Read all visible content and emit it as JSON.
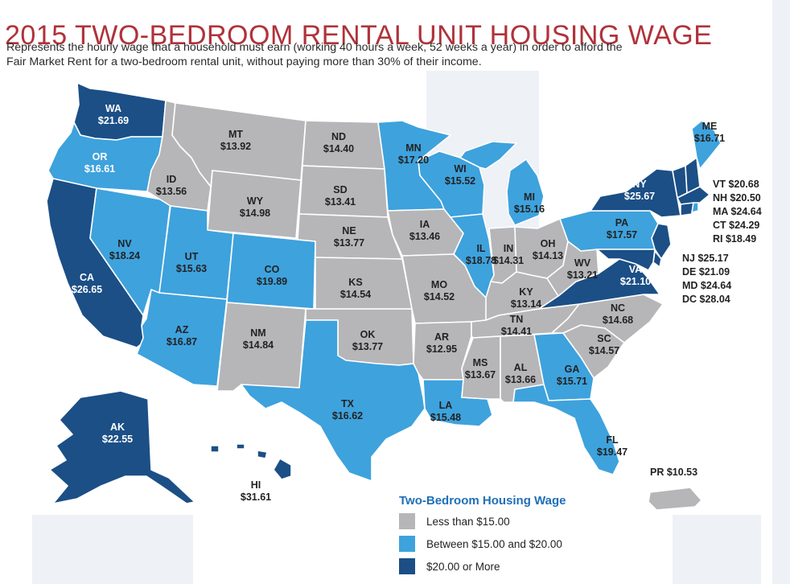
{
  "header": {
    "title": "2015 TWO-BEDROOM RENTAL UNIT HOUSING WAGE",
    "subtitle_line1": "Represents the hourly wage that a household must earn (working 40 hours a week, 52 weeks a year) in order to afford the",
    "subtitle_line2": "Fair Market Rent for a two-bedroom rental unit, without paying more than 30% of their income."
  },
  "colors": {
    "less_than_15": "#b6b6b8",
    "between_15_20": "#3ea2dd",
    "twenty_or_more": "#1b4f86",
    "title_red": "#b0323a",
    "legend_title_blue": "#1e6fb8"
  },
  "states": [
    {
      "code": "WA",
      "value": "$21.69",
      "tier": "high"
    },
    {
      "code": "OR",
      "value": "$16.61",
      "tier": "mid"
    },
    {
      "code": "CA",
      "value": "$26.65",
      "tier": "high"
    },
    {
      "code": "ID",
      "value": "$13.56",
      "tier": "low"
    },
    {
      "code": "NV",
      "value": "$18.24",
      "tier": "mid"
    },
    {
      "code": "MT",
      "value": "$13.92",
      "tier": "low"
    },
    {
      "code": "WY",
      "value": "$14.98",
      "tier": "low"
    },
    {
      "code": "UT",
      "value": "$15.63",
      "tier": "mid"
    },
    {
      "code": "AZ",
      "value": "$16.87",
      "tier": "mid"
    },
    {
      "code": "CO",
      "value": "$19.89",
      "tier": "mid"
    },
    {
      "code": "NM",
      "value": "$14.84",
      "tier": "low"
    },
    {
      "code": "ND",
      "value": "$14.40",
      "tier": "low"
    },
    {
      "code": "SD",
      "value": "$13.41",
      "tier": "low"
    },
    {
      "code": "NE",
      "value": "$13.77",
      "tier": "low"
    },
    {
      "code": "KS",
      "value": "$14.54",
      "tier": "low"
    },
    {
      "code": "OK",
      "value": "$13.77",
      "tier": "low"
    },
    {
      "code": "TX",
      "value": "$16.62",
      "tier": "mid"
    },
    {
      "code": "MN",
      "value": "$17.20",
      "tier": "mid"
    },
    {
      "code": "IA",
      "value": "$13.46",
      "tier": "low"
    },
    {
      "code": "MO",
      "value": "$14.52",
      "tier": "low"
    },
    {
      "code": "AR",
      "value": "$12.95",
      "tier": "low"
    },
    {
      "code": "LA",
      "value": "$15.48",
      "tier": "mid"
    },
    {
      "code": "WI",
      "value": "$15.52",
      "tier": "mid"
    },
    {
      "code": "IL",
      "value": "$18.78",
      "tier": "mid"
    },
    {
      "code": "MI",
      "value": "$15.16",
      "tier": "mid"
    },
    {
      "code": "IN",
      "value": "$14.31",
      "tier": "low"
    },
    {
      "code": "OH",
      "value": "$14.13",
      "tier": "low"
    },
    {
      "code": "KY",
      "value": "$13.14",
      "tier": "low"
    },
    {
      "code": "TN",
      "value": "$14.41",
      "tier": "low"
    },
    {
      "code": "MS",
      "value": "$13.67",
      "tier": "low"
    },
    {
      "code": "AL",
      "value": "$13.66",
      "tier": "low"
    },
    {
      "code": "GA",
      "value": "$15.71",
      "tier": "mid"
    },
    {
      "code": "FL",
      "value": "$19.47",
      "tier": "mid"
    },
    {
      "code": "SC",
      "value": "$14.57",
      "tier": "low"
    },
    {
      "code": "NC",
      "value": "$14.68",
      "tier": "low"
    },
    {
      "code": "VA",
      "value": "$21.10",
      "tier": "high"
    },
    {
      "code": "WV",
      "value": "$13.21",
      "tier": "low"
    },
    {
      "code": "PA",
      "value": "$17.57",
      "tier": "mid"
    },
    {
      "code": "NY",
      "value": "$25.67",
      "tier": "high"
    },
    {
      "code": "ME",
      "value": "$16.71",
      "tier": "mid"
    },
    {
      "code": "AK",
      "value": "$22.55",
      "tier": "high"
    },
    {
      "code": "HI",
      "value": "$31.61",
      "tier": "high"
    },
    {
      "code": "PR",
      "value": "$10.53",
      "tier": "low"
    }
  ],
  "small_states": [
    {
      "code": "VT",
      "value": "$20.68",
      "tier": "high"
    },
    {
      "code": "NH",
      "value": "$20.50",
      "tier": "high"
    },
    {
      "code": "MA",
      "value": "$24.64",
      "tier": "high"
    },
    {
      "code": "CT",
      "value": "$24.29",
      "tier": "high"
    },
    {
      "code": "RI",
      "value": "$18.49",
      "tier": "mid"
    },
    {
      "code": "NJ",
      "value": "$25.17",
      "tier": "high"
    },
    {
      "code": "DE",
      "value": "$21.09",
      "tier": "high"
    },
    {
      "code": "MD",
      "value": "$24.64",
      "tier": "high"
    },
    {
      "code": "DC",
      "value": "$28.04",
      "tier": "high"
    }
  ],
  "labels": {
    "WA": "WA",
    "WA_v": "$21.69",
    "OR": "OR",
    "OR_v": "$16.61",
    "CA": "CA",
    "CA_v": "$26.65",
    "ID": "ID",
    "ID_v": "$13.56",
    "NV": "NV",
    "NV_v": "$18.24",
    "MT": "MT",
    "MT_v": "$13.92",
    "WY": "WY",
    "WY_v": "$14.98",
    "UT": "UT",
    "UT_v": "$15.63",
    "AZ": "AZ",
    "AZ_v": "$16.87",
    "CO": "CO",
    "CO_v": "$19.89",
    "NM": "NM",
    "NM_v": "$14.84",
    "ND": "ND",
    "ND_v": "$14.40",
    "SD": "SD",
    "SD_v": "$13.41",
    "NE": "NE",
    "NE_v": "$13.77",
    "KS": "KS",
    "KS_v": "$14.54",
    "OK": "OK",
    "OK_v": "$13.77",
    "TX": "TX",
    "TX_v": "$16.62",
    "MN": "MN",
    "MN_v": "$17.20",
    "IA": "IA",
    "IA_v": "$13.46",
    "MO": "MO",
    "MO_v": "$14.52",
    "AR": "AR",
    "AR_v": "$12.95",
    "LA": "LA",
    "LA_v": "$15.48",
    "WI": "WI",
    "WI_v": "$15.52",
    "IL": "IL",
    "IL_v": "$18.78",
    "MI": "MI",
    "MI_v": "$15.16",
    "IN": "IN",
    "IN_v": "$14.31",
    "OH": "OH",
    "OH_v": "$14.13",
    "KY": "KY",
    "KY_v": "$13.14",
    "TN": "TN",
    "TN_v": "$14.41",
    "MS": "MS",
    "MS_v": "$13.67",
    "AL": "AL",
    "AL_v": "$13.66",
    "GA": "GA",
    "GA_v": "$15.71",
    "FL": "FL",
    "FL_v": "$19.47",
    "SC": "SC",
    "SC_v": "$14.57",
    "NC": "NC",
    "NC_v": "$14.68",
    "VA": "VA",
    "VA_v": "$21.10",
    "WV": "WV",
    "WV_v": "$13.21",
    "PA": "PA",
    "PA_v": "$17.57",
    "NY": "NY",
    "NY_v": "$25.67",
    "ME": "ME",
    "ME_v": "$16.71",
    "AK": "AK",
    "AK_v": "$22.55",
    "HI": "HI",
    "HI_v": "$31.61"
  },
  "side_labels": {
    "vt": "VT $20.68",
    "nh": "NH $20.50",
    "ma": "MA $24.64",
    "ct": "CT $24.29",
    "ri": "RI $18.49",
    "nj": "NJ $25.17",
    "de": "DE $21.09",
    "md": "MD $24.64",
    "dc": "DC $28.04",
    "pr": "PR $10.53"
  },
  "legend": {
    "title": "Two-Bedroom Housing Wage",
    "items": [
      {
        "label": "Less than $15.00"
      },
      {
        "label": "Between $15.00 and $20.00"
      },
      {
        "label": "$20.00 or More"
      }
    ]
  }
}
